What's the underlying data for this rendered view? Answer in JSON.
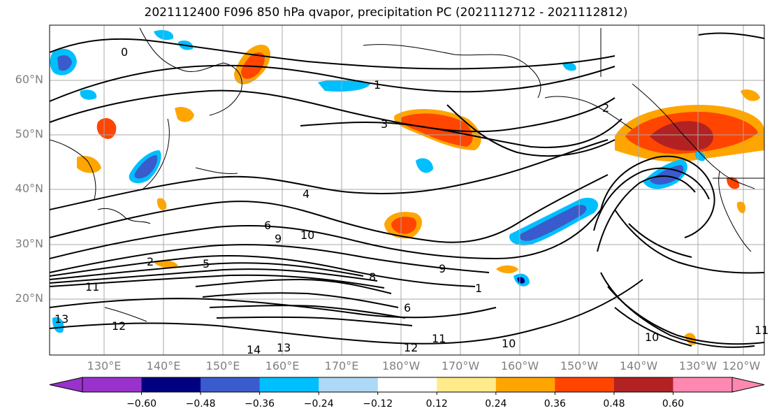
{
  "title": "2021112400 F096 850 hPa qvapor, precipitation PC (2021112712 - 2021112812)",
  "lat_labels": [
    "60°N",
    "50°N",
    "40°N",
    "30°N",
    "20°N"
  ],
  "lon_labels": [
    "130°E",
    "140°E",
    "150°E",
    "160°E",
    "170°E",
    "180°W",
    "170°W",
    "160°W",
    "150°W",
    "140°W",
    "130°W",
    "120°W"
  ],
  "colorbar": {
    "colors": [
      "#9932CC",
      "#000080",
      "#3A5BCB",
      "#00BFFF",
      "#ADD8F6",
      "#FFFFFF",
      "#FFEB8A",
      "#FFA500",
      "#FF4500",
      "#B22222",
      "#FF88B2"
    ],
    "tick_labels": [
      "−0.60",
      "−0.48",
      "−0.36",
      "−0.24",
      "−0.12",
      "0.12",
      "0.24",
      "0.36",
      "0.48",
      "0.60"
    ]
  },
  "contour_labels": [
    "0",
    "1",
    "2",
    "3",
    "4",
    "6",
    "9",
    "10",
    "11",
    "12",
    "13",
    "14",
    "2",
    "5",
    "8",
    "6",
    "1",
    "10",
    "12",
    "11",
    "10",
    "9",
    "11",
    "13"
  ]
}
